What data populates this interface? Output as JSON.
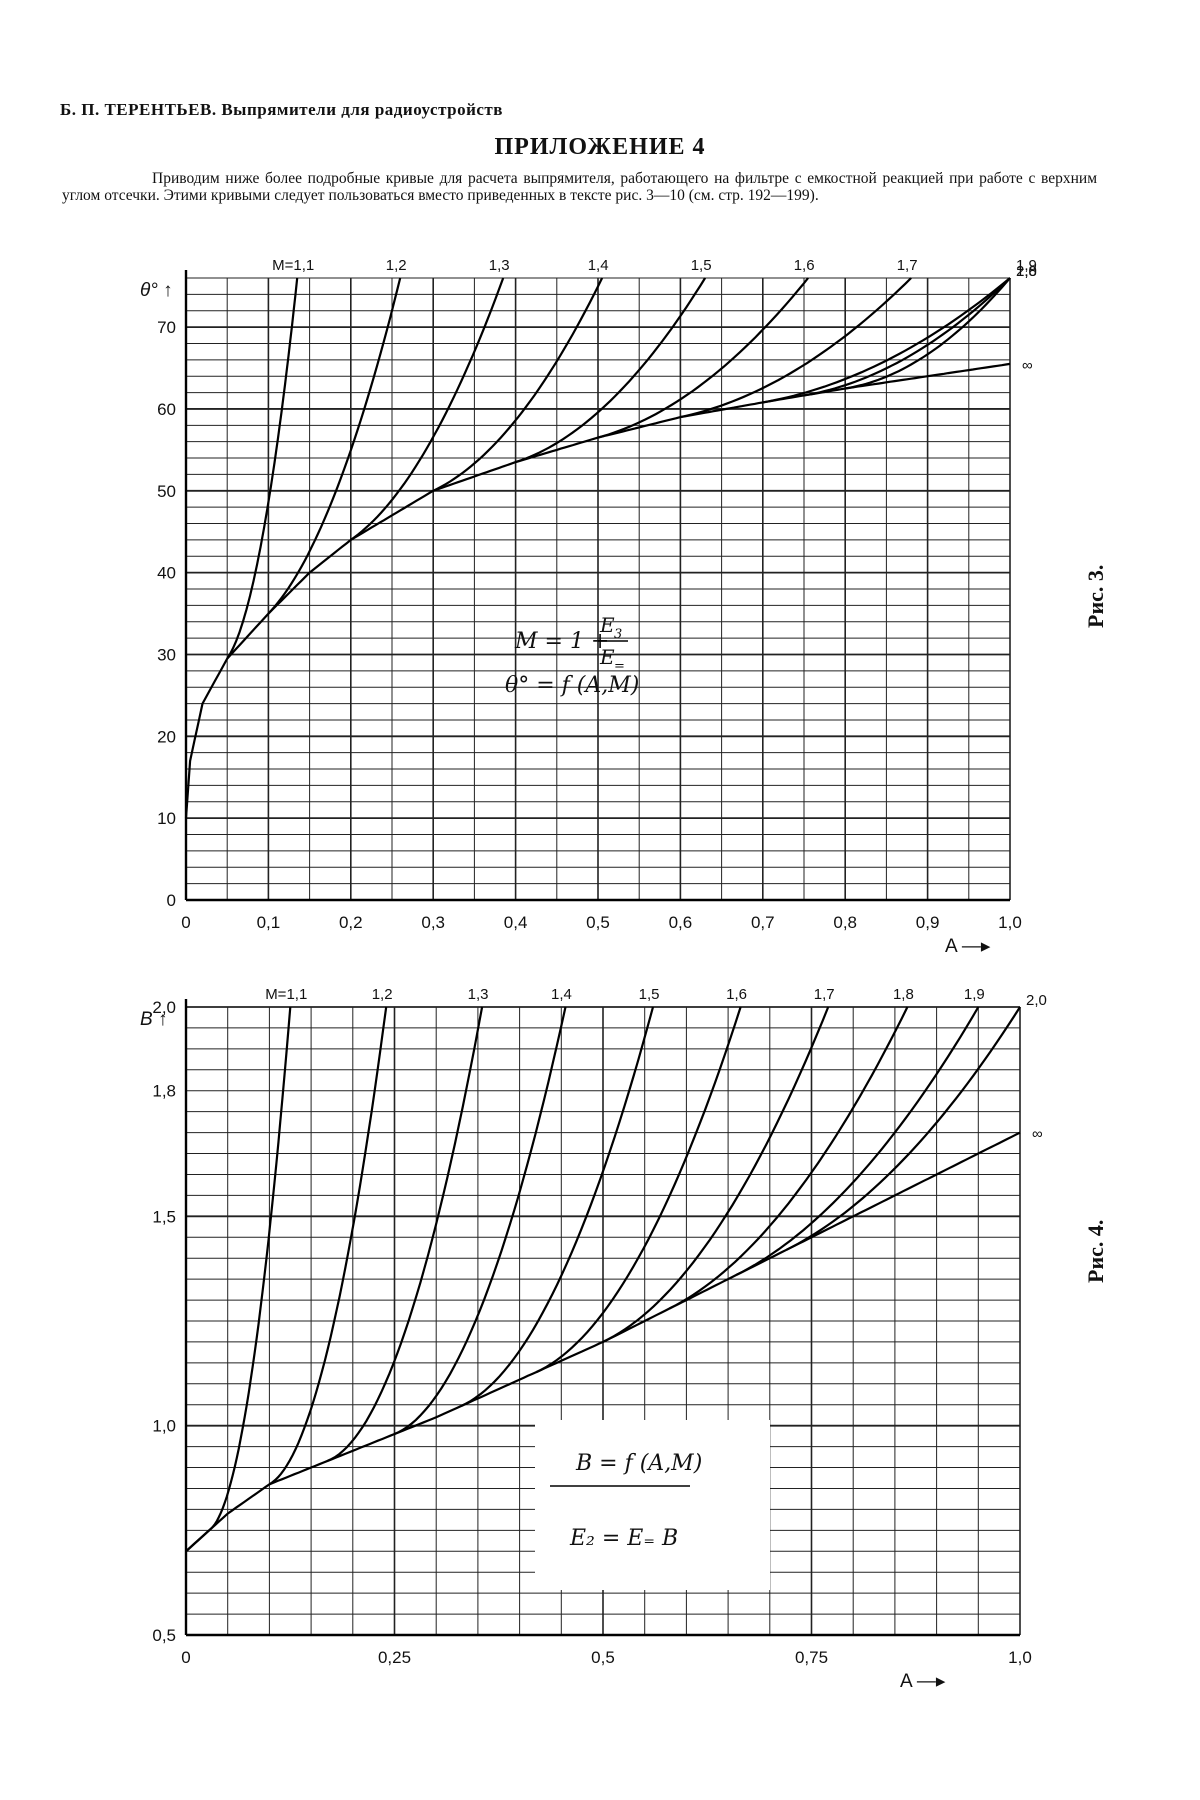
{
  "page": {
    "header": "Б. П. ТЕРЕНТЬЕВ. Выпрямители для радиоустройств",
    "title": "ПРИЛОЖЕНИЕ 4",
    "intro": "Приводим ниже более подробные кривые для расчета выпрямителя, работающего на фильтре с емкостной реакцией при работе с верхним углом отсечки. Этими кривыми следует пользоваться вместо приведенных в тексте рис. 3—10 (см. стр. 192—199).",
    "fig1_label": "Рис. 3.",
    "fig2_label": "Рис. 4."
  },
  "colors": {
    "ink": "#111111",
    "paper": "#ffffff"
  },
  "chart_data": [
    {
      "type": "line",
      "id": "fig3",
      "title": "",
      "xlabel": "A",
      "ylabel": "θ°",
      "xlim": [
        0,
        1.0
      ],
      "ylim": [
        0,
        76
      ],
      "grid": true,
      "x_ticks": [
        0,
        0.1,
        0.2,
        0.3,
        0.4,
        0.5,
        0.6,
        0.7,
        0.8,
        0.9,
        1.0
      ],
      "x_tick_labels": [
        "0",
        "0,1",
        "0,2",
        "0,3",
        "0,4",
        "0,5",
        "0,6",
        "0,7",
        "0,8",
        "0,9",
        "1,0"
      ],
      "y_ticks": [
        0,
        10,
        20,
        30,
        40,
        50,
        60,
        70
      ],
      "y_tick_labels": [
        "0",
        "10",
        "20",
        "30",
        "40",
        "50",
        "60",
        "70"
      ],
      "formula": {
        "line1_left": "M = 1 + ",
        "num": "E",
        "num_sub": "3",
        "den": "E",
        "den_sub": "=",
        "line2": "θ° = f (A,M)"
      },
      "envelope": {
        "x": [
          0,
          0.005,
          0.02,
          0.05,
          0.1,
          0.15,
          0.2,
          0.3,
          0.4,
          0.5,
          0.6,
          0.7,
          0.8,
          0.9,
          1.0
        ],
        "y": [
          10,
          17,
          24,
          29.5,
          35,
          40,
          44,
          50,
          53.5,
          56.5,
          59,
          60.8,
          62.5,
          64,
          65.5
        ]
      },
      "series": [
        {
          "name": "1,1",
          "label_text": "M=1,1",
          "tangent_x": 0.05,
          "end_x": 0.135
        },
        {
          "name": "1,2",
          "tangent_x": 0.1,
          "end_x": 0.26
        },
        {
          "name": "1,3",
          "tangent_x": 0.2,
          "end_x": 0.385
        },
        {
          "name": "1,4",
          "tangent_x": 0.3,
          "end_x": 0.505
        },
        {
          "name": "1,5",
          "tangent_x": 0.4,
          "end_x": 0.63
        },
        {
          "name": "1,6",
          "tangent_x": 0.5,
          "end_x": 0.755
        },
        {
          "name": "1,7",
          "tangent_x": 0.6,
          "end_x": 0.88
        },
        {
          "name": "1,8",
          "tangent_x": 0.7,
          "end_x": 1.0
        },
        {
          "name": "1,9",
          "tangent_x": 0.75,
          "end_x": 1.0
        },
        {
          "name": "2,0",
          "tangent_x": 0.8,
          "end_x": 1.0
        },
        {
          "name": "∞",
          "envelope": true
        }
      ]
    },
    {
      "type": "line",
      "id": "fig4",
      "title": "",
      "xlabel": "A",
      "ylabel": "B",
      "xlim": [
        0,
        1.0
      ],
      "ylim": [
        0.5,
        2.0
      ],
      "grid": true,
      "x_ticks": [
        0,
        0.25,
        0.5,
        0.75,
        1.0
      ],
      "x_tick_labels": [
        "0",
        "0,25",
        "0,5",
        "0,75",
        "1,0"
      ],
      "y_ticks": [
        0.5,
        1.0,
        1.5,
        1.8,
        2.0
      ],
      "y_tick_labels": [
        "0,5",
        "1,0",
        "1,5",
        "1,8",
        "2,0"
      ],
      "formula": {
        "line1": "B = f (A,M)",
        "line2": "E₂ = E₌ B"
      },
      "envelope": {
        "x": [
          0,
          0.05,
          0.1,
          0.15,
          0.2,
          0.3,
          0.4,
          0.5,
          0.6,
          0.7,
          0.8,
          0.9,
          1.0
        ],
        "y": [
          0.7,
          0.79,
          0.86,
          0.9,
          0.94,
          1.02,
          1.11,
          1.2,
          1.3,
          1.4,
          1.5,
          1.6,
          1.7
        ]
      },
      "series": [
        {
          "name": "1,1",
          "label_text": "M=1,1",
          "start_y": 0.78,
          "tangent_x": 0.03,
          "end_x": 0.125
        },
        {
          "name": "1,2",
          "tangent_x": 0.1,
          "end_x": 0.24
        },
        {
          "name": "1,3",
          "tangent_x": 0.17,
          "end_x": 0.355
        },
        {
          "name": "1,4",
          "tangent_x": 0.25,
          "end_x": 0.455
        },
        {
          "name": "1,5",
          "tangent_x": 0.33,
          "end_x": 0.56
        },
        {
          "name": "1,6",
          "tangent_x": 0.42,
          "end_x": 0.665
        },
        {
          "name": "1,7",
          "tangent_x": 0.5,
          "end_x": 0.77
        },
        {
          "name": "1,8",
          "tangent_x": 0.58,
          "end_x": 0.865
        },
        {
          "name": "1,9",
          "tangent_x": 0.66,
          "end_x": 0.95
        },
        {
          "name": "2,0",
          "tangent_x": 0.72,
          "end_x": 1.0
        },
        {
          "name": "∞",
          "envelope": true
        }
      ]
    }
  ]
}
